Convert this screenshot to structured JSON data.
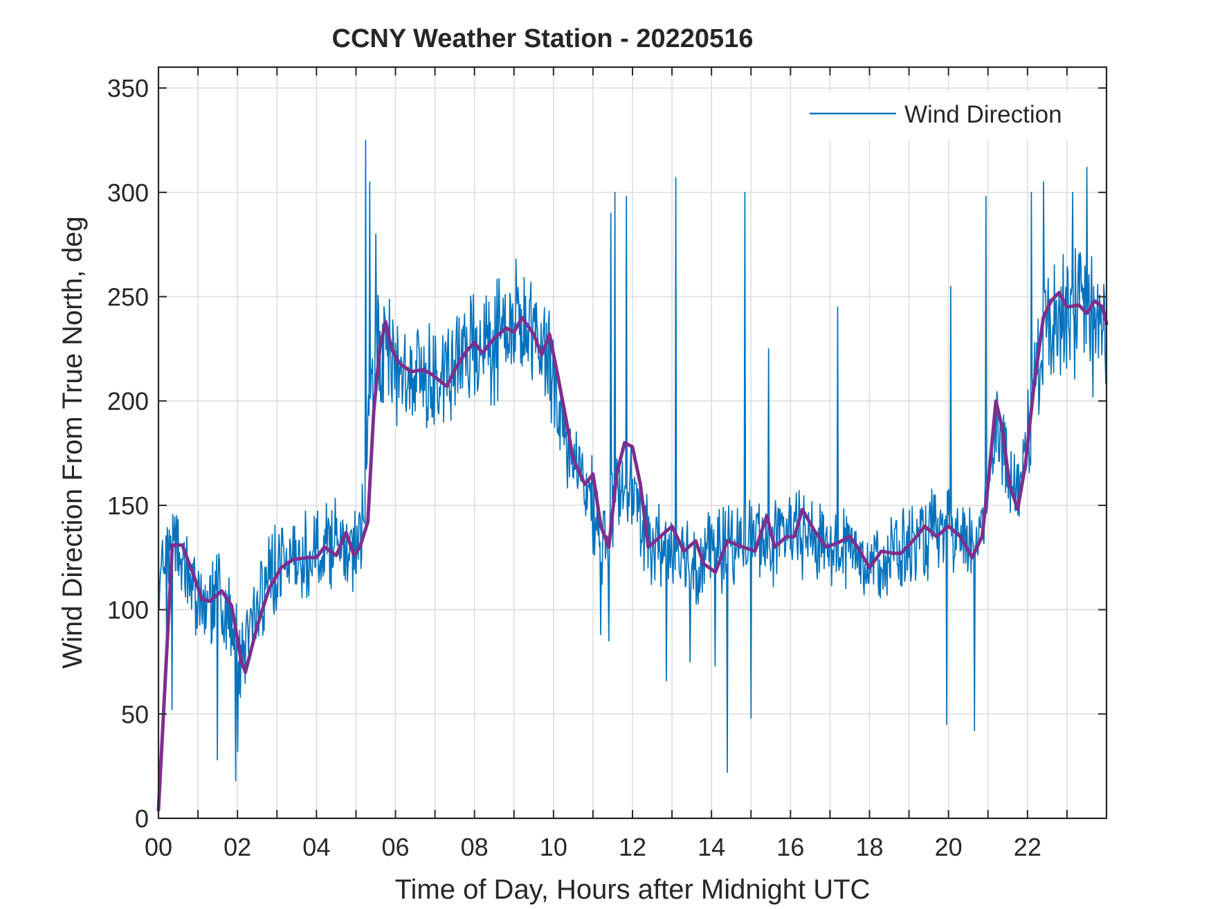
{
  "chart_data": {
    "type": "line",
    "title": "CCNY Weather Station - 20220516",
    "xlabel": "Time of Day, Hours after Midnight UTC",
    "ylabel": "Wind Direction From True North, deg",
    "xlim": [
      0,
      24
    ],
    "ylim": [
      0,
      360
    ],
    "xticks": [
      {
        "value": 0,
        "label": "00"
      },
      {
        "value": 2,
        "label": "02"
      },
      {
        "value": 4,
        "label": "04"
      },
      {
        "value": 6,
        "label": "06"
      },
      {
        "value": 8,
        "label": "08"
      },
      {
        "value": 10,
        "label": "10"
      },
      {
        "value": 12,
        "label": "12"
      },
      {
        "value": 14,
        "label": "14"
      },
      {
        "value": 16,
        "label": "16"
      },
      {
        "value": 18,
        "label": "18"
      },
      {
        "value": 20,
        "label": "20"
      },
      {
        "value": 22,
        "label": "22"
      }
    ],
    "yticks": [
      {
        "value": 0,
        "label": "0"
      },
      {
        "value": 50,
        "label": "50"
      },
      {
        "value": 100,
        "label": "100"
      },
      {
        "value": 150,
        "label": "150"
      },
      {
        "value": 200,
        "label": "200"
      },
      {
        "value": 250,
        "label": "250"
      },
      {
        "value": 300,
        "label": "300"
      },
      {
        "value": 350,
        "label": "350"
      }
    ],
    "grid": true,
    "legend": {
      "position": "top-right",
      "entries": [
        "Wind Direction"
      ]
    },
    "series": [
      {
        "name": "Wind Direction",
        "color": "#0072BD",
        "kind": "raw-noisy",
        "base": [
          [
            0,
            122
          ],
          [
            0.3,
            133
          ],
          [
            0.6,
            128
          ],
          [
            1.0,
            105
          ],
          [
            1.5,
            107
          ],
          [
            1.8,
            100
          ],
          [
            2.1,
            72
          ],
          [
            2.5,
            105
          ],
          [
            3.0,
            120
          ],
          [
            3.5,
            125
          ],
          [
            4.0,
            128
          ],
          [
            4.5,
            135
          ],
          [
            4.9,
            122
          ],
          [
            5.2,
            145
          ],
          [
            5.4,
            215
          ],
          [
            5.7,
            225
          ],
          [
            6.2,
            212
          ],
          [
            6.8,
            212
          ],
          [
            7.2,
            208
          ],
          [
            7.6,
            218
          ],
          [
            8.0,
            225
          ],
          [
            8.5,
            230
          ],
          [
            9.0,
            235
          ],
          [
            9.5,
            230
          ],
          [
            9.9,
            222
          ],
          [
            10.2,
            190
          ],
          [
            10.6,
            165
          ],
          [
            11.0,
            150
          ],
          [
            11.3,
            130
          ],
          [
            11.6,
            155
          ],
          [
            11.9,
            165
          ],
          [
            12.3,
            135
          ],
          [
            12.7,
            130
          ],
          [
            13.1,
            128
          ],
          [
            13.6,
            122
          ],
          [
            14.0,
            130
          ],
          [
            14.5,
            130
          ],
          [
            15.0,
            135
          ],
          [
            15.5,
            133
          ],
          [
            16.0,
            137
          ],
          [
            16.5,
            135
          ],
          [
            17.0,
            131
          ],
          [
            17.5,
            130
          ],
          [
            18.0,
            124
          ],
          [
            18.5,
            126
          ],
          [
            19.0,
            130
          ],
          [
            19.5,
            135
          ],
          [
            20.0,
            137
          ],
          [
            20.4,
            130
          ],
          [
            20.8,
            135
          ],
          [
            21.0,
            160
          ],
          [
            21.2,
            195
          ],
          [
            21.5,
            165
          ],
          [
            21.8,
            155
          ],
          [
            22.0,
            185
          ],
          [
            22.4,
            230
          ],
          [
            22.7,
            245
          ],
          [
            23.0,
            245
          ],
          [
            23.5,
            242
          ],
          [
            24.0,
            233
          ]
        ],
        "spikes": [
          [
            0.2,
            85
          ],
          [
            0.35,
            52
          ],
          [
            1.5,
            28
          ],
          [
            1.95,
            18
          ],
          [
            2.0,
            32
          ],
          [
            5.25,
            325
          ],
          [
            5.35,
            305
          ],
          [
            5.5,
            280
          ],
          [
            9.05,
            268
          ],
          [
            11.2,
            88
          ],
          [
            11.4,
            85
          ],
          [
            11.45,
            290
          ],
          [
            11.55,
            300
          ],
          [
            11.85,
            298
          ],
          [
            12.85,
            66
          ],
          [
            13.1,
            307
          ],
          [
            13.45,
            75
          ],
          [
            14.1,
            73
          ],
          [
            14.4,
            22
          ],
          [
            14.85,
            300
          ],
          [
            15.0,
            48
          ],
          [
            15.45,
            225
          ],
          [
            17.2,
            245
          ],
          [
            19.95,
            45
          ],
          [
            20.05,
            255
          ],
          [
            20.65,
            42
          ],
          [
            20.95,
            298
          ],
          [
            22.1,
            300
          ],
          [
            22.4,
            305
          ],
          [
            23.15,
            300
          ],
          [
            23.5,
            312
          ],
          [
            23.65,
            202
          ]
        ]
      },
      {
        "name": "",
        "color": "#7E2F8E",
        "kind": "smoothed",
        "points": [
          [
            0,
            4
          ],
          [
            0.35,
            131
          ],
          [
            0.6,
            131
          ],
          [
            0.9,
            116
          ],
          [
            1.1,
            105
          ],
          [
            1.3,
            104
          ],
          [
            1.6,
            109
          ],
          [
            1.85,
            102
          ],
          [
            2.1,
            75
          ],
          [
            2.2,
            70
          ],
          [
            2.5,
            92
          ],
          [
            2.8,
            110
          ],
          [
            3.1,
            120
          ],
          [
            3.4,
            124
          ],
          [
            3.8,
            125
          ],
          [
            4.0,
            125
          ],
          [
            4.2,
            130
          ],
          [
            4.5,
            126
          ],
          [
            4.75,
            137
          ],
          [
            4.95,
            126
          ],
          [
            5.1,
            130
          ],
          [
            5.3,
            142
          ],
          [
            5.45,
            195
          ],
          [
            5.6,
            225
          ],
          [
            5.75,
            238
          ],
          [
            5.9,
            225
          ],
          [
            6.1,
            218
          ],
          [
            6.4,
            214
          ],
          [
            6.7,
            215
          ],
          [
            6.9,
            213
          ],
          [
            7.1,
            210
          ],
          [
            7.3,
            207
          ],
          [
            7.5,
            215
          ],
          [
            7.8,
            224
          ],
          [
            8.0,
            228
          ],
          [
            8.2,
            223
          ],
          [
            8.5,
            230
          ],
          [
            8.8,
            235
          ],
          [
            9.0,
            233
          ],
          [
            9.2,
            240
          ],
          [
            9.5,
            232
          ],
          [
            9.7,
            222
          ],
          [
            9.9,
            232
          ],
          [
            10.1,
            213
          ],
          [
            10.3,
            193
          ],
          [
            10.5,
            172
          ],
          [
            10.8,
            160
          ],
          [
            11.0,
            165
          ],
          [
            11.2,
            140
          ],
          [
            11.4,
            130
          ],
          [
            11.6,
            165
          ],
          [
            11.8,
            180
          ],
          [
            12.0,
            178
          ],
          [
            12.2,
            160
          ],
          [
            12.4,
            130
          ],
          [
            12.7,
            135
          ],
          [
            13.0,
            140
          ],
          [
            13.3,
            128
          ],
          [
            13.6,
            133
          ],
          [
            13.8,
            122
          ],
          [
            14.1,
            118
          ],
          [
            14.4,
            133
          ],
          [
            14.8,
            130
          ],
          [
            15.1,
            128
          ],
          [
            15.4,
            145
          ],
          [
            15.6,
            130
          ],
          [
            15.9,
            135
          ],
          [
            16.1,
            135
          ],
          [
            16.3,
            148
          ],
          [
            16.6,
            138
          ],
          [
            16.9,
            130
          ],
          [
            17.2,
            132
          ],
          [
            17.5,
            135
          ],
          [
            17.7,
            130
          ],
          [
            18.0,
            120
          ],
          [
            18.3,
            128
          ],
          [
            18.6,
            127
          ],
          [
            18.8,
            127
          ],
          [
            19.1,
            133
          ],
          [
            19.4,
            140
          ],
          [
            19.7,
            135
          ],
          [
            20.0,
            140
          ],
          [
            20.3,
            135
          ],
          [
            20.6,
            125
          ],
          [
            20.85,
            135
          ],
          [
            21.0,
            160
          ],
          [
            21.2,
            200
          ],
          [
            21.35,
            188
          ],
          [
            21.55,
            160
          ],
          [
            21.75,
            148
          ],
          [
            21.95,
            170
          ],
          [
            22.15,
            205
          ],
          [
            22.4,
            240
          ],
          [
            22.6,
            248
          ],
          [
            22.8,
            252
          ],
          [
            23.0,
            245
          ],
          [
            23.3,
            246
          ],
          [
            23.5,
            242
          ],
          [
            23.7,
            248
          ],
          [
            23.9,
            245
          ],
          [
            24.0,
            237
          ]
        ]
      }
    ]
  }
}
